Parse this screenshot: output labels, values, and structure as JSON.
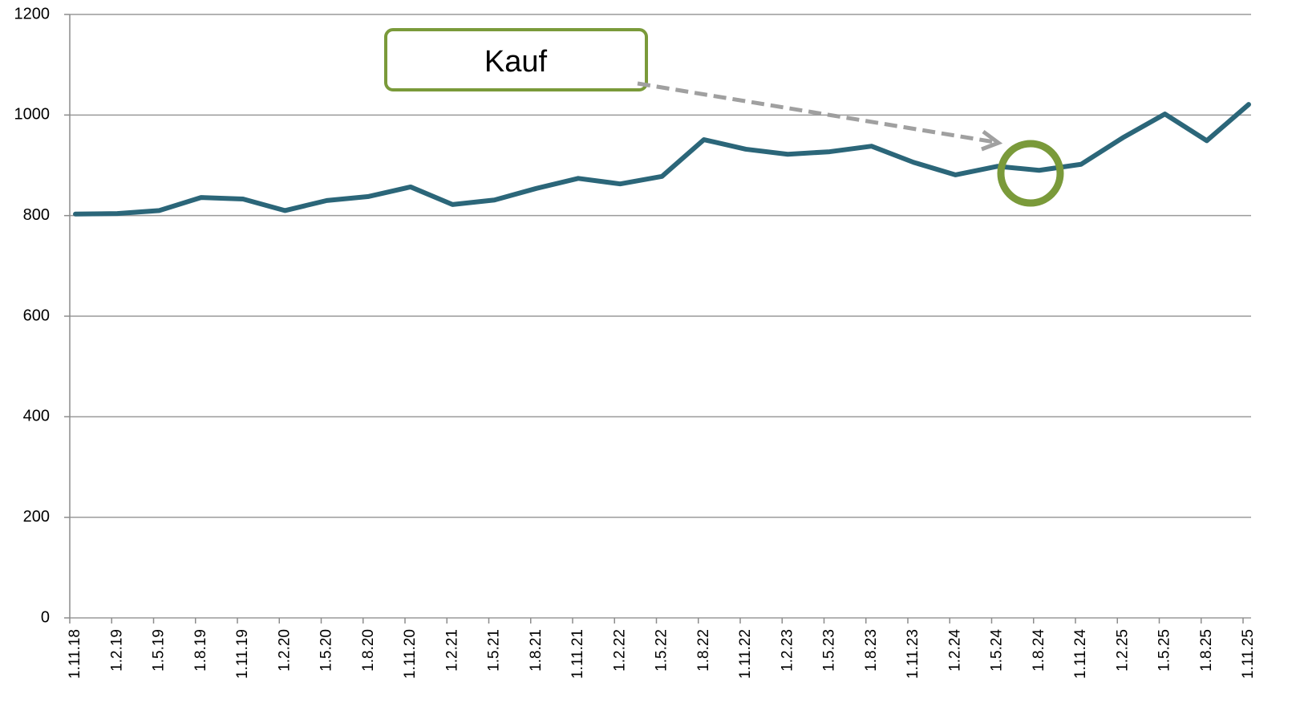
{
  "chart_data": {
    "type": "line",
    "annotation": "Kauf",
    "categories": [
      "1.11.18",
      "1.2.19",
      "1.5.19",
      "1.8.19",
      "1.11.19",
      "1.2.20",
      "1.5.20",
      "1.8.20",
      "1.11.20",
      "1.2.21",
      "1.5.21",
      "1.8.21",
      "1.11.21",
      "1.2.22",
      "1.5.22",
      "1.8.22",
      "1.11.22",
      "1.2.23",
      "1.5.23",
      "1.8.23",
      "1.11.23",
      "1.2.24",
      "1.5.24",
      "1.8.24",
      "1.11.24",
      "1.2.25",
      "1.5.25",
      "1.8.25",
      "1.11.25"
    ],
    "values": [
      803,
      804,
      810,
      836,
      833,
      810,
      830,
      838,
      857,
      822,
      831,
      854,
      874,
      863,
      878,
      951,
      932,
      922,
      927,
      938,
      906,
      881,
      898,
      890,
      902,
      955,
      1002,
      949,
      1021
    ],
    "color": "#2b6679",
    "ylim": [
      0,
      1200
    ],
    "yticks": [
      0,
      200,
      400,
      600,
      800,
      1000,
      1200
    ],
    "grid": true
  }
}
